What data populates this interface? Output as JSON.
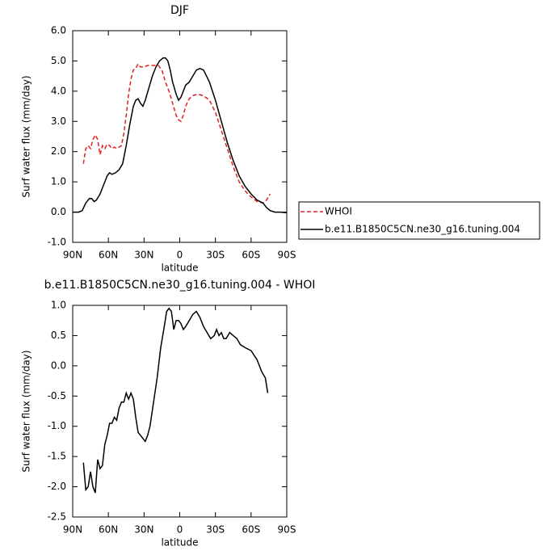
{
  "chart_data": [
    {
      "type": "line",
      "title": "DJF",
      "ylabel": "Surf water flux (mm/day)",
      "xlabel": "latitude",
      "xlim": [
        90,
        -90
      ],
      "xticks": [
        {
          "value": 90,
          "label": "90N"
        },
        {
          "value": 60,
          "label": "60N"
        },
        {
          "value": 30,
          "label": "30N"
        },
        0,
        {
          "value": -30,
          "label": "30S"
        },
        {
          "value": -60,
          "label": "60S"
        },
        {
          "value": -90,
          "label": "90S"
        }
      ],
      "ylim": [
        -1,
        6
      ],
      "yticks": [
        {
          "value": -1,
          "label": "-1.0"
        },
        {
          "value": 0,
          "label": "0.0"
        },
        {
          "value": 1,
          "label": "1.0"
        },
        {
          "value": 2,
          "label": "2.0"
        },
        {
          "value": 3,
          "label": "3.0"
        },
        {
          "value": 4,
          "label": "4.0"
        },
        {
          "value": 5,
          "label": "5.0"
        },
        {
          "value": 6,
          "label": "6.0"
        }
      ],
      "legend": "outside-right",
      "series": [
        {
          "name": "WHOI",
          "color": "#e02020",
          "style": "dashed",
          "x": [
            81,
            79,
            77,
            75,
            73,
            71,
            69,
            67,
            65,
            63,
            61,
            59,
            57,
            55,
            53,
            51,
            49,
            47,
            45,
            43,
            41,
            39,
            37,
            35,
            33,
            30,
            27,
            24,
            21,
            18,
            15,
            12,
            9,
            6,
            3,
            1,
            -1,
            -3,
            -5,
            -8,
            -11,
            -15,
            -20,
            -25,
            -30,
            -35,
            -40,
            -45,
            -50,
            -55,
            -60,
            -65,
            -70,
            -73,
            -76
          ],
          "values": [
            1.6,
            2.1,
            2.2,
            2.1,
            2.4,
            2.55,
            2.4,
            1.9,
            2.2,
            2.1,
            2.25,
            2.2,
            2.1,
            2.15,
            2.1,
            2.15,
            2.2,
            2.6,
            3.2,
            3.9,
            4.4,
            4.7,
            4.75,
            4.9,
            4.8,
            4.8,
            4.85,
            4.85,
            4.85,
            4.85,
            4.7,
            4.3,
            4.0,
            3.6,
            3.2,
            3.05,
            3.0,
            3.2,
            3.5,
            3.75,
            3.85,
            3.9,
            3.85,
            3.7,
            3.3,
            2.7,
            2.1,
            1.5,
            1.0,
            0.7,
            0.5,
            0.35,
            0.3,
            0.4,
            0.6
          ]
        },
        {
          "name": "b.e11.B1850C5CN.ne30_g16.tuning.004",
          "color": "#000000",
          "style": "solid",
          "x": [
            90,
            85,
            82,
            79,
            76,
            74,
            72,
            70,
            67,
            64,
            61,
            59,
            57,
            54,
            51,
            48,
            45,
            42,
            39,
            37,
            35,
            33,
            31,
            29,
            26,
            23,
            20,
            17,
            14,
            12,
            10,
            8,
            6,
            3,
            1,
            -1,
            -3,
            -5,
            -8,
            -11,
            -14,
            -17,
            -20,
            -25,
            -30,
            -35,
            -40,
            -45,
            -50,
            -55,
            -60,
            -65,
            -70,
            -73,
            -76,
            -80,
            -85,
            -90
          ],
          "values": [
            0,
            0,
            0.05,
            0.3,
            0.45,
            0.45,
            0.35,
            0.4,
            0.6,
            0.9,
            1.2,
            1.3,
            1.25,
            1.3,
            1.4,
            1.6,
            2.2,
            2.9,
            3.5,
            3.7,
            3.75,
            3.6,
            3.5,
            3.7,
            4.1,
            4.5,
            4.8,
            5.0,
            5.1,
            5.1,
            5.0,
            4.7,
            4.3,
            3.9,
            3.7,
            3.8,
            4.0,
            4.2,
            4.3,
            4.5,
            4.7,
            4.75,
            4.7,
            4.3,
            3.7,
            3.0,
            2.3,
            1.7,
            1.2,
            0.85,
            0.6,
            0.4,
            0.3,
            0.15,
            0.05,
            0,
            0,
            -0.02
          ]
        }
      ]
    },
    {
      "type": "line",
      "title": "b.e11.B1850C5CN.ne30_g16.tuning.004 - WHOI",
      "ylabel": "Surf water flux (mm/day)",
      "xlabel": "latitude",
      "xlim": [
        90,
        -90
      ],
      "xticks": [
        {
          "value": 90,
          "label": "90N"
        },
        {
          "value": 60,
          "label": "60N"
        },
        {
          "value": 30,
          "label": "30N"
        },
        0,
        {
          "value": -30,
          "label": "30S"
        },
        {
          "value": -60,
          "label": "60S"
        },
        {
          "value": -90,
          "label": "90S"
        }
      ],
      "ylim": [
        -2.5,
        1
      ],
      "yticks": [
        -2.5,
        {
          "value": -2,
          "label": "-2.0"
        },
        -1.5,
        {
          "value": -1,
          "label": "-1.0"
        },
        -0.5,
        {
          "value": 0,
          "label": "0.0"
        },
        0.5,
        {
          "value": 1,
          "label": "1.0"
        }
      ],
      "color": "#000000",
      "x": [
        81,
        79,
        77,
        75,
        73,
        71,
        69,
        67,
        65,
        63,
        61,
        59,
        57,
        55,
        53,
        51,
        49,
        47,
        45,
        43,
        41,
        39,
        37,
        35,
        33,
        31,
        29,
        27,
        25,
        22,
        19,
        16,
        13,
        11,
        9,
        7,
        5,
        3,
        1,
        -1,
        -3,
        -5,
        -8,
        -11,
        -14,
        -17,
        -20,
        -23,
        -26,
        -29,
        -31,
        -33,
        -35,
        -37,
        -39,
        -42,
        -45,
        -48,
        -51,
        -55,
        -60,
        -65,
        -69,
        -72,
        -74
      ],
      "values": [
        -1.6,
        -2.05,
        -2.0,
        -1.75,
        -2.0,
        -2.1,
        -1.55,
        -1.7,
        -1.65,
        -1.3,
        -1.15,
        -0.95,
        -0.95,
        -0.85,
        -0.9,
        -0.7,
        -0.6,
        -0.6,
        -0.45,
        -0.55,
        -0.45,
        -0.55,
        -0.85,
        -1.1,
        -1.15,
        -1.2,
        -1.25,
        -1.15,
        -1.0,
        -0.6,
        -0.2,
        0.3,
        0.65,
        0.9,
        0.95,
        0.9,
        0.6,
        0.75,
        0.75,
        0.7,
        0.6,
        0.65,
        0.75,
        0.85,
        0.9,
        0.8,
        0.65,
        0.55,
        0.45,
        0.5,
        0.6,
        0.5,
        0.55,
        0.45,
        0.45,
        0.55,
        0.5,
        0.45,
        0.35,
        0.3,
        0.25,
        0.1,
        -0.1,
        -0.2,
        -0.45
      ]
    }
  ]
}
